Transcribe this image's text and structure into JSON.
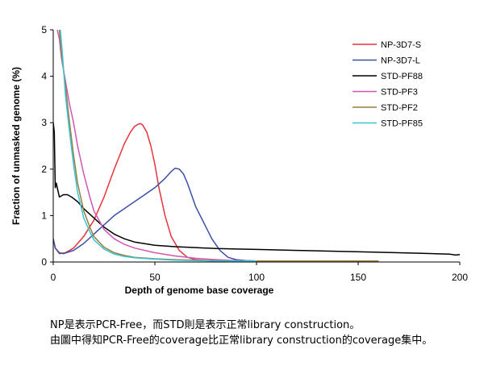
{
  "chart_data": {
    "type": "line",
    "xlabel": "Depth of genome base coverage",
    "ylabel": "Fraction of unmasked genome (%)",
    "xlim": [
      0,
      200
    ],
    "ylim": [
      0,
      5
    ],
    "xticks": [
      0,
      50,
      100,
      150,
      200
    ],
    "yticks": [
      0,
      1,
      2,
      3,
      4,
      5
    ],
    "grid": false,
    "legend_position": "top-right",
    "series": [
      {
        "name": "NP-3D7-S",
        "color": "#e8323c",
        "x": [
          0,
          1,
          3,
          6,
          10,
          15,
          20,
          25,
          30,
          35,
          38,
          40,
          42,
          43,
          44,
          46,
          48,
          50,
          52,
          55,
          58,
          62,
          66,
          70,
          75,
          80,
          90,
          100,
          120,
          140,
          160
        ],
        "y": [
          0.5,
          0.3,
          0.18,
          0.2,
          0.3,
          0.55,
          0.9,
          1.4,
          2.0,
          2.55,
          2.8,
          2.92,
          2.97,
          2.98,
          2.95,
          2.8,
          2.5,
          2.1,
          1.6,
          1.0,
          0.55,
          0.25,
          0.1,
          0.05,
          0.03,
          0.02,
          0.02,
          0.02,
          0.02,
          0.02,
          0.02
        ]
      },
      {
        "name": "NP-3D7-L",
        "color": "#3b4fa8",
        "x": [
          0,
          1,
          3,
          5,
          10,
          15,
          20,
          25,
          30,
          35,
          40,
          45,
          50,
          55,
          58,
          60,
          62,
          64,
          66,
          68,
          70,
          74,
          78,
          82,
          86,
          90,
          95,
          100,
          120,
          140,
          160
        ],
        "y": [
          0.5,
          0.3,
          0.2,
          0.18,
          0.25,
          0.4,
          0.6,
          0.8,
          1.0,
          1.15,
          1.3,
          1.45,
          1.6,
          1.8,
          1.95,
          2.02,
          2.0,
          1.9,
          1.7,
          1.45,
          1.2,
          0.85,
          0.5,
          0.25,
          0.1,
          0.05,
          0.03,
          0.02,
          0.02,
          0.02,
          0.02
        ]
      },
      {
        "name": "STD-PF88",
        "color": "#000000",
        "x": [
          0,
          0.5,
          1,
          1.5,
          2,
          3,
          5,
          7,
          9,
          12,
          15,
          20,
          25,
          30,
          35,
          40,
          50,
          60,
          70,
          80,
          90,
          100,
          120,
          140,
          160,
          180,
          195,
          198,
          200
        ],
        "y": [
          3.0,
          2.8,
          1.6,
          1.7,
          1.6,
          1.4,
          1.45,
          1.45,
          1.4,
          1.3,
          1.15,
          0.95,
          0.75,
          0.6,
          0.5,
          0.43,
          0.36,
          0.33,
          0.31,
          0.29,
          0.28,
          0.27,
          0.25,
          0.23,
          0.21,
          0.19,
          0.17,
          0.15,
          0.16
        ]
      },
      {
        "name": "STD-PF3",
        "color": "#d255b4",
        "x": [
          2,
          3,
          4,
          6,
          8,
          10,
          12,
          15,
          18,
          20,
          25,
          30,
          35,
          40,
          50,
          60,
          70,
          80,
          90,
          100
        ],
        "y": [
          5.0,
          4.8,
          4.4,
          3.9,
          3.4,
          3.0,
          2.5,
          1.9,
          1.4,
          1.1,
          0.7,
          0.5,
          0.38,
          0.3,
          0.2,
          0.13,
          0.08,
          0.05,
          0.03,
          0.02
        ]
      },
      {
        "name": "STD-PF2",
        "color": "#9a7d3f",
        "x": [
          3,
          4,
          6,
          8,
          10,
          12,
          15,
          18,
          20,
          25,
          30,
          35,
          40,
          50,
          60,
          70,
          80,
          90,
          100,
          120,
          140,
          160
        ],
        "y": [
          5.0,
          4.5,
          3.8,
          3.0,
          2.3,
          1.7,
          1.1,
          0.75,
          0.55,
          0.32,
          0.2,
          0.14,
          0.1,
          0.07,
          0.05,
          0.04,
          0.03,
          0.02,
          0.02,
          0.02,
          0.02,
          0.02
        ]
      },
      {
        "name": "STD-PF85",
        "color": "#38c4d4",
        "x": [
          3.5,
          4.5,
          6,
          8,
          10,
          12,
          15,
          18,
          20,
          25,
          30,
          35,
          40,
          50,
          60,
          70,
          80,
          90,
          100
        ],
        "y": [
          5.0,
          4.5,
          3.6,
          2.8,
          2.1,
          1.5,
          0.95,
          0.65,
          0.48,
          0.28,
          0.17,
          0.12,
          0.09,
          0.06,
          0.04,
          0.03,
          0.02,
          0.02,
          0.02
        ]
      }
    ]
  },
  "caption": {
    "line1": "NP是表示PCR-Free，而STD則是表示正常library construction。",
    "line2": "由圖中得知PCR-Free的coverage比正常library construction的coverage集中。"
  }
}
